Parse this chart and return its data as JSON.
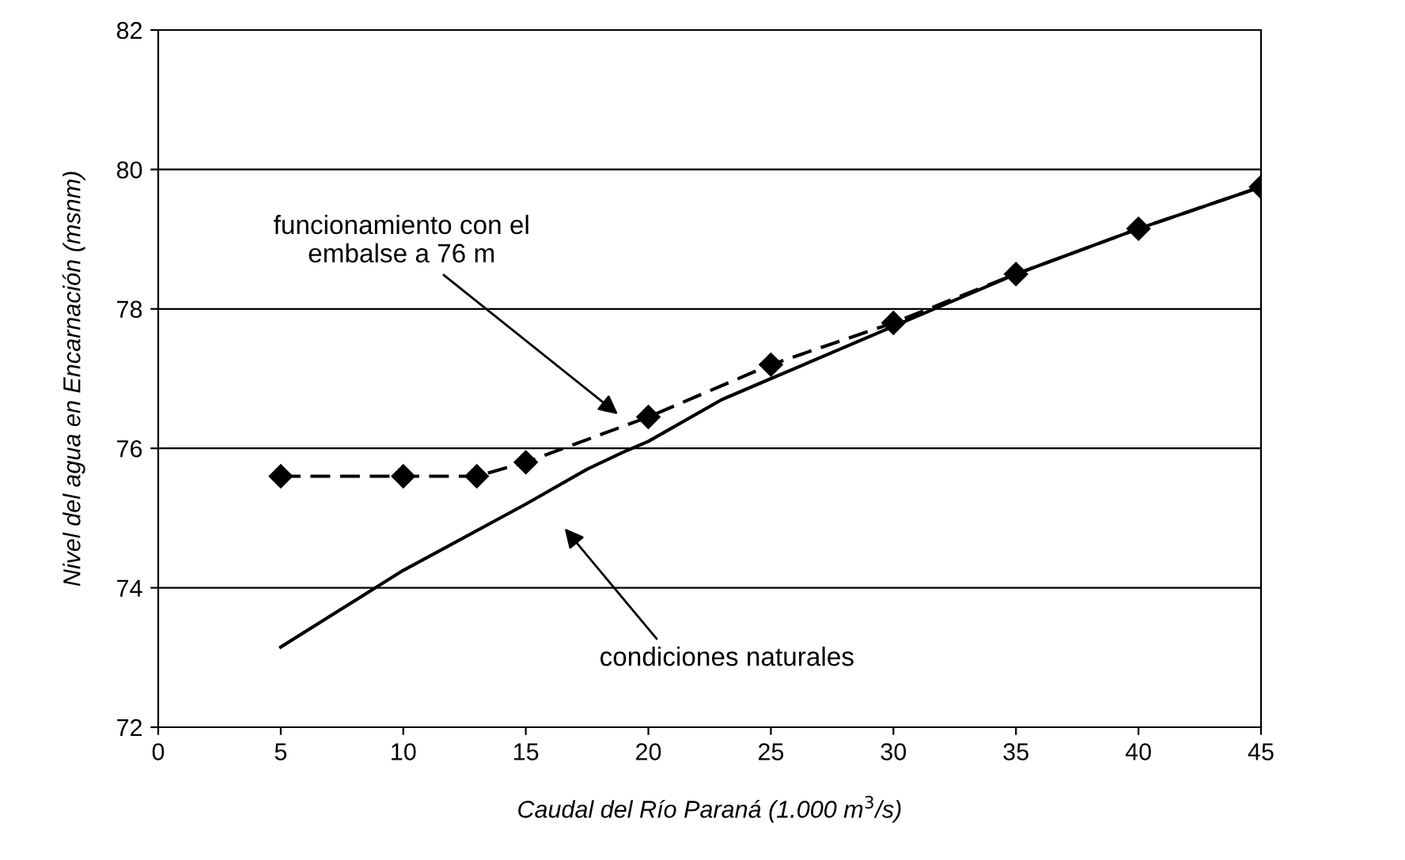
{
  "chart_data": {
    "type": "line",
    "xlabel": "Caudal del Río Paraná (1.000 m$^{3}$/s)",
    "ylabel": "Nivel del agua en Encarnación (msnm)",
    "xlim": [
      0,
      45
    ],
    "xticks": [
      0,
      5,
      10,
      15,
      20,
      25,
      30,
      35,
      40,
      45
    ],
    "ylim": [
      72,
      82
    ],
    "yticks": [
      72,
      74,
      76,
      78,
      80,
      82
    ],
    "grid": "y",
    "legend": false,
    "series": [
      {
        "color": "#000000",
        "marker": "diamond",
        "line_style": "dashed",
        "x": [
          5,
          10,
          13,
          15,
          20,
          25,
          30,
          35,
          40,
          45
        ],
        "values": [
          75.6,
          75.6,
          75.6,
          75.8,
          76.45,
          77.2,
          77.8,
          78.5,
          79.15,
          79.75
        ]
      },
      {
        "color": "#000000",
        "marker": "none",
        "line_style": "solid",
        "x": [
          5,
          7.5,
          10,
          15,
          17.5,
          19,
          20,
          23,
          25,
          30,
          32,
          35,
          40,
          45
        ],
        "values": [
          73.15,
          73.7,
          74.25,
          75.2,
          75.7,
          75.95,
          76.1,
          76.7,
          77.0,
          77.75,
          78.05,
          78.5,
          79.15,
          79.75
        ]
      }
    ],
    "annotations": [
      {
        "text": "funcionamiento con el\nembalse a 76 m",
        "x": 18.9,
        "y": 76.45
      },
      "condiciones naturales"
    ]
  }
}
